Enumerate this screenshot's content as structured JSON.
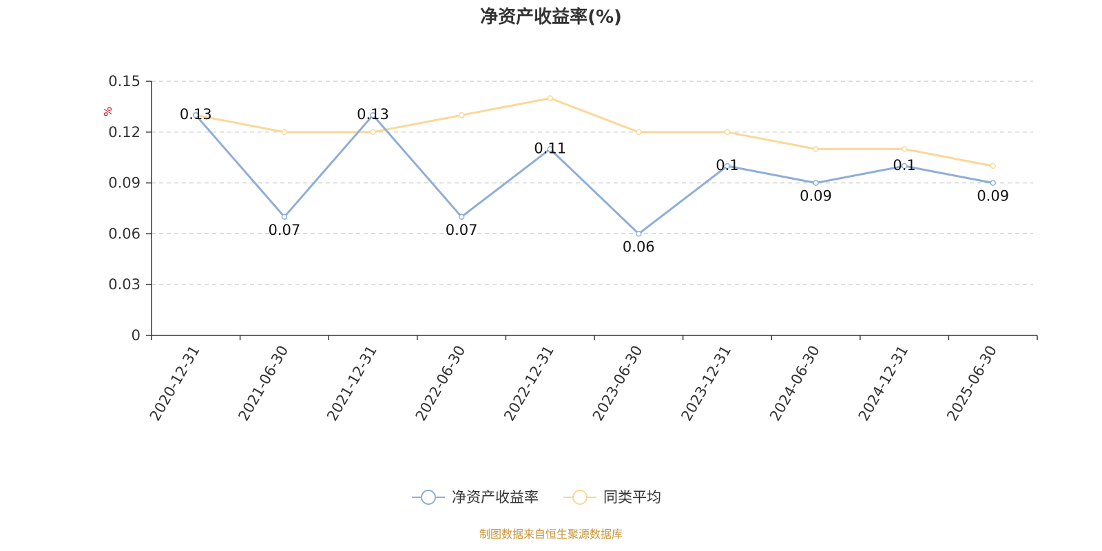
{
  "chart_data": {
    "type": "line",
    "title": "净资产收益率(%)",
    "y_unit": "%",
    "ylim": [
      0,
      0.15
    ],
    "yticks": [
      "0",
      "0.03",
      "0.06",
      "0.09",
      "0.12",
      "0.15"
    ],
    "categories": [
      "2020-12-31",
      "2021-06-30",
      "2021-12-31",
      "2022-06-30",
      "2022-12-31",
      "2023-06-30",
      "2023-12-31",
      "2024-06-30",
      "2024-12-31",
      "2025-06-30"
    ],
    "series": [
      {
        "name": "净资产收益率",
        "color": "#8eaed8",
        "values": [
          0.13,
          0.07,
          0.13,
          0.07,
          0.11,
          0.06,
          0.1,
          0.09,
          0.1,
          0.09
        ],
        "labels": [
          "0.13",
          "0.07",
          "0.13",
          "0.07",
          "0.11",
          "0.06",
          "0.1",
          "0.09",
          "0.1",
          "0.09"
        ]
      },
      {
        "name": "同类平均",
        "color": "#fbd897",
        "values": [
          0.13,
          0.12,
          0.12,
          0.13,
          0.14,
          0.12,
          0.12,
          0.11,
          0.11,
          0.1
        ]
      }
    ],
    "grid": "horizontal-dashed",
    "legend_position": "bottom-center"
  },
  "source_note": "制图数据来自恒生聚源数据库"
}
